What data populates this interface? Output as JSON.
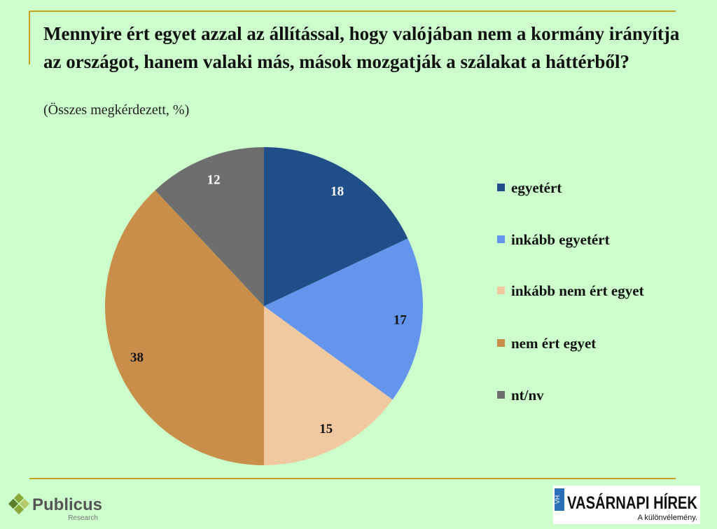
{
  "chart_data": {
    "type": "pie",
    "title": "Mennyire ért egyet azzal az állítással, hogy valójában nem a kormány irányítja az országot, hanem valaki más, mások mozgatják a szálakat a háttérből?",
    "subtitle": "(Összes megkérdezett, %)",
    "categories": [
      "egyetért",
      "inkább egyetért",
      "inkább nem ért egyet",
      "nem ért egyet",
      "nt/nv"
    ],
    "values": [
      18,
      17,
      15,
      38,
      12
    ],
    "colors": [
      "#1f4e89",
      "#6495ed",
      "#f0c9a0",
      "#c98f4a",
      "#6e6e6e"
    ],
    "legend": "right"
  },
  "footer": {
    "left_logo": "Publicus",
    "left_logo_sub": "Research",
    "right_logo_mark": "VH",
    "right_logo": "VASÁRNAPI HÍREK",
    "right_logo_sub": "A különvélemény."
  }
}
